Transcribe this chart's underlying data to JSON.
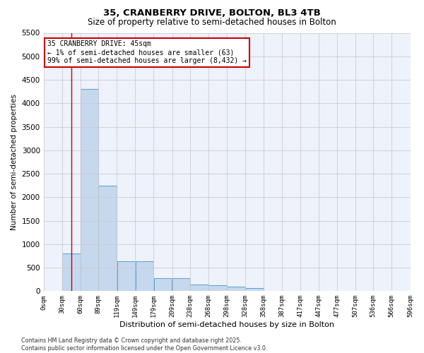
{
  "title1": "35, CRANBERRY DRIVE, BOLTON, BL3 4TB",
  "title2": "Size of property relative to semi-detached houses in Bolton",
  "xlabel": "Distribution of semi-detached houses by size in Bolton",
  "ylabel": "Number of semi-detached properties",
  "annotation_title": "35 CRANBERRY DRIVE: 45sqm",
  "annotation_line1": "← 1% of semi-detached houses are smaller (63)",
  "annotation_line2": "99% of semi-detached houses are larger (8,432) →",
  "property_sqm": 45,
  "bin_edges": [
    0,
    30,
    60,
    89,
    119,
    149,
    179,
    209,
    238,
    268,
    298,
    328,
    358,
    387,
    417,
    447,
    477,
    507,
    536,
    566,
    596
  ],
  "bin_labels": [
    "0sqm",
    "30sqm",
    "60sqm",
    "89sqm",
    "119sqm",
    "149sqm",
    "179sqm",
    "209sqm",
    "238sqm",
    "268sqm",
    "298sqm",
    "328sqm",
    "358sqm",
    "387sqm",
    "417sqm",
    "447sqm",
    "477sqm",
    "507sqm",
    "536sqm",
    "566sqm",
    "596sqm"
  ],
  "bar_heights": [
    5,
    800,
    4300,
    2250,
    630,
    630,
    275,
    275,
    145,
    120,
    90,
    70,
    0,
    0,
    0,
    0,
    0,
    0,
    0,
    0
  ],
  "bar_color": "#c5d8ee",
  "bar_edge_color": "#5a9fd4",
  "vline_x": 45,
  "vline_color": "#cc0000",
  "ylim": [
    0,
    5500
  ],
  "yticks": [
    0,
    500,
    1000,
    1500,
    2000,
    2500,
    3000,
    3500,
    4000,
    4500,
    5000,
    5500
  ],
  "grid_color": "#cccccc",
  "bg_color": "#eef2fb",
  "footer_line1": "Contains HM Land Registry data © Crown copyright and database right 2025.",
  "footer_line2": "Contains public sector information licensed under the Open Government Licence v3.0."
}
